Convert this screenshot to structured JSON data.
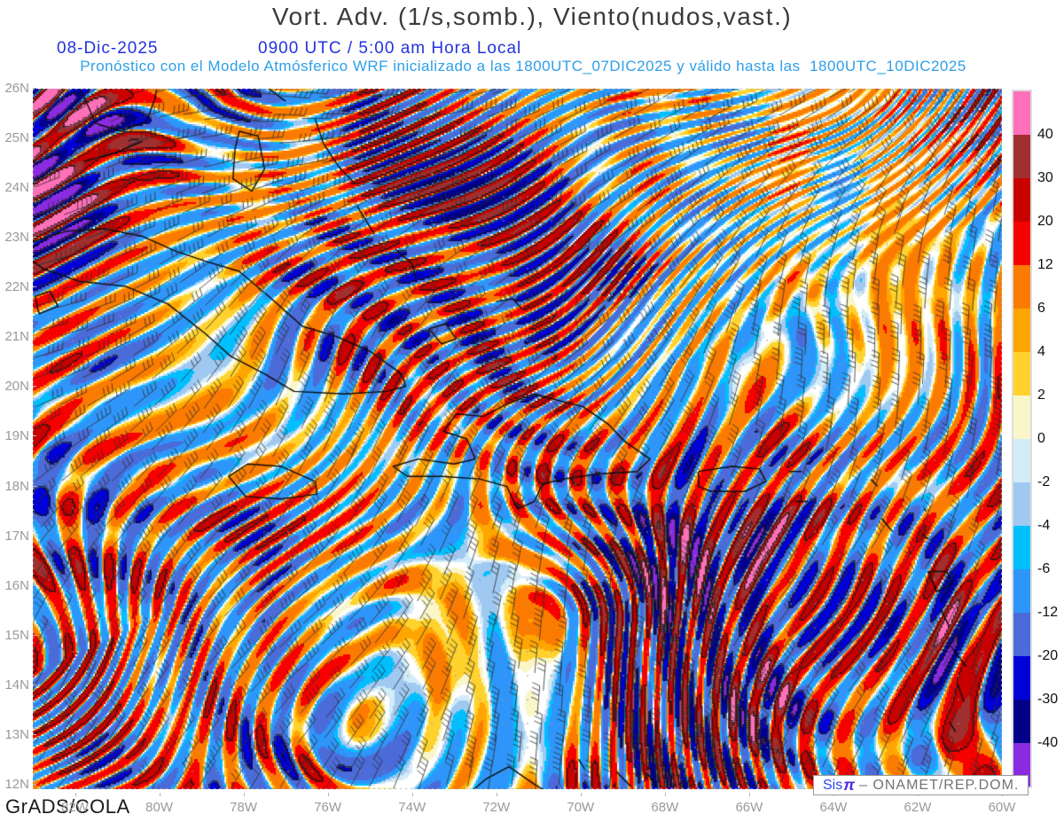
{
  "header": {
    "title": "Vort. Adv. (1/s,somb.), Viento(nudos,vast.)",
    "date": "08-Dic-2025",
    "time": "0900 UTC / 5:00 am Hora Local",
    "forecast_note": "Pronóstico con el Modelo Atmósferico WRF inicializado a las 1800UTC_07DIC2025 y válido hasta las  1800UTC_10DIC2025"
  },
  "map": {
    "lat_ticks": [
      "26N",
      "25N",
      "24N",
      "23N",
      "22N",
      "21N",
      "20N",
      "19N",
      "18N",
      "17N",
      "16N",
      "15N",
      "14N",
      "13N",
      "12N"
    ],
    "lon_ticks": [
      "82W",
      "80W",
      "78W",
      "76W",
      "74W",
      "72W",
      "70W",
      "68W",
      "66W",
      "64W",
      "62W",
      "60W"
    ]
  },
  "colorbar": {
    "labels": [
      "40",
      "30",
      "20",
      "12",
      "6",
      "4",
      "2",
      "0",
      "-2",
      "-4",
      "-6",
      "-12",
      "-20",
      "-30",
      "-40"
    ],
    "colors_top_to_bottom": [
      "#FF70B8",
      "#A03030",
      "#C80000",
      "#F60000",
      "#FB7B00",
      "#FFA500",
      "#FFD22D",
      "#FAF6C8",
      "#D2ECF8",
      "#A0C9F2",
      "#00BFFF",
      "#2E96FA",
      "#4A6BD8",
      "#0000D8",
      "#000089",
      "#8A2BE2"
    ]
  },
  "chart_data": {
    "type": "heatmap",
    "title": "Vort. Adv. (1/s,somb.), Viento(nudos,vast.)",
    "region": {
      "lat_min_n": 12,
      "lat_max_n": 26,
      "lon_right_w": 60,
      "lon_left_w": 83
    },
    "shading_levels": [
      -40,
      -30,
      -20,
      -12,
      -6,
      -4,
      -2,
      0,
      2,
      4,
      6,
      12,
      20,
      30,
      40
    ],
    "units": {
      "shading": "1/s (somb.)",
      "wind": "nudos (vast.)"
    },
    "overlays": [
      "wind-barbs",
      "coastlines",
      "black-contours"
    ],
    "legend_position": "right"
  },
  "footer": {
    "credit": "GrADS/COLA",
    "brand_sis": "Sis",
    "brand_pi": "π",
    "brand_rest": "– ONAMET/REP.DOM."
  }
}
